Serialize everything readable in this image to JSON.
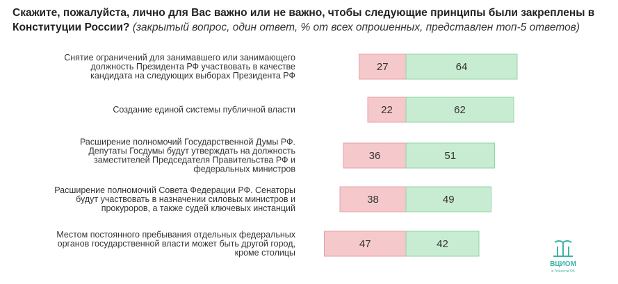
{
  "title": {
    "bold": "Скажите, пожалуйста, лично для Вас важно или не важно, чтобы следующие принципы были закреплены в Конституции России?",
    "note": " (закрытый вопрос, один ответ, % от всех опрошенных, представлен топ-5 ответов)"
  },
  "logo": {
    "name": "ВЦИОМ",
    "tagline": "в Точности Об"
  },
  "colors": {
    "negative_fill": "#f5c9cc",
    "negative_stroke": "#eaa0a6",
    "positive_fill": "#c8ecd2",
    "positive_stroke": "#92d3a3",
    "logo": "#3bb3a7"
  },
  "chart_data": {
    "type": "bar",
    "orientation": "horizontal-diverging",
    "categories": [
      [
        "Снятие ограничений для занимавшего или занимающего",
        "должность Президента РФ участвовать в качестве",
        "кандидата на следующих выборах Президента РФ"
      ],
      [
        "Создание единой системы публичной власти"
      ],
      [
        "Расширение полномочий Государственной Думы РФ.",
        "Депутаты Госдумы будут утверждать на должность",
        "заместителей Председателя Правительства РФ и",
        "федеральных министров"
      ],
      [
        "Расширение полномочий Совета Федерации РФ. Сенаторы",
        "будут участвовать в назначении силовых министров и",
        "прокуроров, а также судей ключевых инстанций"
      ],
      [
        "Местом постоянного пребывания отдельных федеральных",
        "органов государственной власти может быть другой город,",
        "кроме столицы"
      ]
    ],
    "series": [
      {
        "values": [
          27,
          22,
          36,
          38,
          47
        ]
      },
      {
        "values": [
          64,
          62,
          51,
          49,
          42
        ]
      }
    ]
  }
}
